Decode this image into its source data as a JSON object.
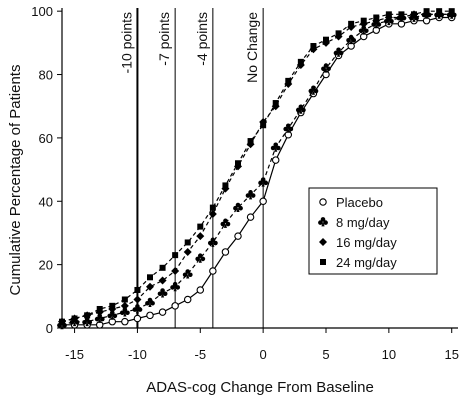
{
  "chart_data": {
    "type": "line",
    "xlabel": "ADAS-cog Change From Baseline",
    "ylabel": "Cumulative Percentage of Patients",
    "xlim": [
      -16,
      15.5
    ],
    "ylim": [
      0,
      101
    ],
    "xticks": [
      -15,
      -10,
      -5,
      0,
      5,
      10,
      15
    ],
    "yticks": [
      0,
      20,
      40,
      60,
      80,
      100
    ],
    "reference_lines": [
      {
        "x": -10,
        "label": "-10 points",
        "weight": "heavy"
      },
      {
        "x": -7,
        "label": "-7 points",
        "weight": "light"
      },
      {
        "x": -4,
        "label": "-4 points",
        "weight": "light"
      },
      {
        "x": 0,
        "label": "No Change",
        "weight": "light"
      }
    ],
    "legend_position": "right-middle",
    "series": [
      {
        "name": "Placebo",
        "marker": "open-circle",
        "line": "solid",
        "x": [
          -16,
          -15,
          -14,
          -13,
          -12,
          -11,
          -10,
          -9,
          -8,
          -7,
          -6,
          -5,
          -4,
          -3,
          -2,
          -1,
          0,
          1,
          2,
          3,
          4,
          5,
          6,
          7,
          8,
          9,
          10,
          11,
          12,
          13,
          14,
          15
        ],
        "y": [
          1,
          1,
          1,
          1,
          2,
          2,
          3,
          4,
          5,
          7,
          9,
          12,
          18,
          24,
          29,
          35,
          40,
          53,
          61,
          68,
          74,
          80,
          86,
          89,
          92,
          94,
          96,
          96,
          97,
          97,
          98,
          98
        ]
      },
      {
        "name": "8 mg/day",
        "marker": "club",
        "line": "dashed",
        "x": [
          -16,
          -15,
          -14,
          -13,
          -12,
          -11,
          -10,
          -9,
          -8,
          -7,
          -6,
          -5,
          -4,
          -3,
          -2,
          -1,
          0,
          1,
          2,
          3,
          4,
          5,
          6,
          7,
          8,
          9,
          10,
          11,
          12,
          13,
          14,
          15
        ],
        "y": [
          1,
          2,
          2,
          3,
          4,
          5,
          6,
          8,
          11,
          13,
          17,
          22,
          27,
          33,
          38,
          42,
          46,
          57,
          63,
          69,
          75,
          82,
          87,
          91,
          94,
          96,
          97,
          98,
          98,
          99,
          99,
          99
        ]
      },
      {
        "name": "16 mg/day",
        "marker": "diamond",
        "line": "dashed",
        "x": [
          -16,
          -15,
          -14,
          -13,
          -12,
          -11,
          -10,
          -9,
          -8,
          -7,
          -6,
          -5,
          -4,
          -3,
          -2,
          -1,
          0,
          1,
          2,
          3,
          4,
          5,
          6,
          7,
          8,
          9,
          10,
          11,
          12,
          13,
          14,
          15
        ],
        "y": [
          2,
          3,
          4,
          5,
          6,
          7,
          9,
          13,
          15,
          18,
          24,
          29,
          36,
          44,
          51,
          58,
          65,
          70,
          77,
          83,
          88,
          90,
          92,
          95,
          96,
          97,
          98,
          98,
          99,
          99,
          99,
          99
        ]
      },
      {
        "name": "24 mg/day",
        "marker": "square",
        "line": "dashed",
        "x": [
          -16,
          -15,
          -14,
          -13,
          -12,
          -11,
          -10,
          -9,
          -8,
          -7,
          -6,
          -5,
          -4,
          -3,
          -2,
          -1,
          0,
          1,
          2,
          3,
          4,
          5,
          6,
          7,
          8,
          9,
          10,
          11,
          12,
          13,
          14,
          15
        ],
        "y": [
          2,
          3,
          4,
          6,
          7,
          9,
          12,
          16,
          19,
          23,
          27,
          32,
          38,
          45,
          52,
          59,
          64,
          71,
          78,
          84,
          89,
          91,
          93,
          96,
          97,
          98,
          99,
          99,
          99,
          100,
          100,
          100
        ]
      }
    ],
    "legend": [
      "Placebo",
      "8 mg/day",
      "16 mg/day",
      "24 mg/day"
    ]
  }
}
